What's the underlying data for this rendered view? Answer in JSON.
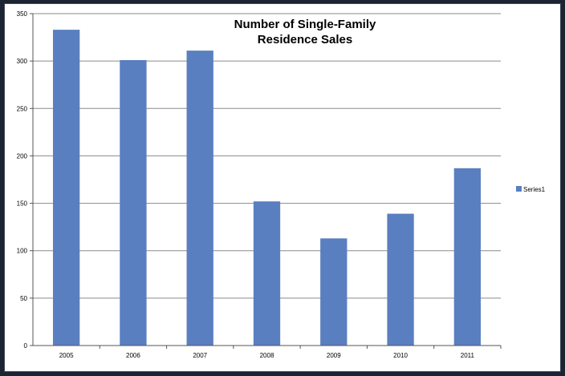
{
  "chart_data": {
    "type": "bar",
    "title_lines": [
      "Number of Single-Family",
      "Residence Sales"
    ],
    "categories": [
      "2005",
      "2006",
      "2007",
      "2008",
      "2009",
      "2010",
      "2011"
    ],
    "series": [
      {
        "name": "Series1",
        "values": [
          333,
          301,
          311,
          152,
          113,
          139,
          187
        ],
        "color": "#5a7fc0"
      }
    ],
    "ylim": [
      0,
      350
    ],
    "yticks": [
      0,
      50,
      100,
      150,
      200,
      250,
      300,
      350
    ],
    "grid": true,
    "legend_position": "right",
    "xlabel": "",
    "ylabel": ""
  }
}
